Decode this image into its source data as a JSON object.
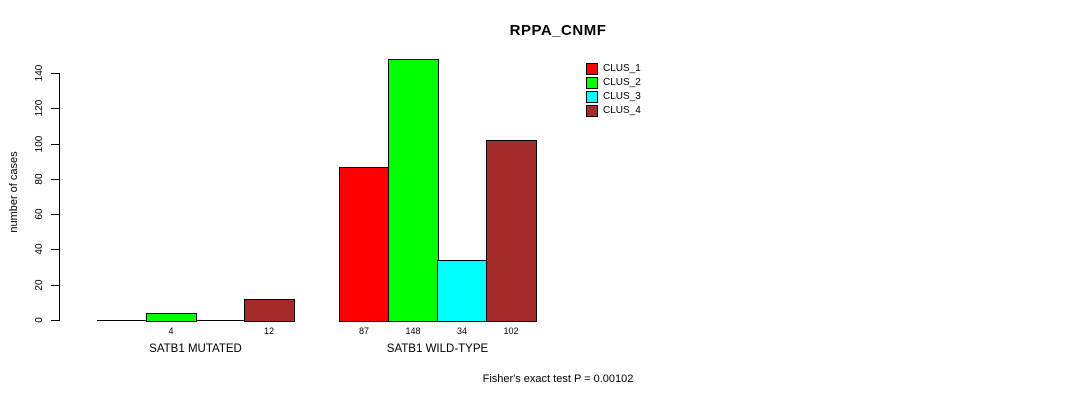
{
  "chart_data": {
    "type": "bar",
    "title": "RPPA_CNMF",
    "ylabel": "number of cases",
    "xlabel": "",
    "categories": [
      "SATB1 MUTATED",
      "SATB1 WILD-TYPE"
    ],
    "series": [
      {
        "name": "CLUS_1",
        "color": "#ff0000",
        "values": [
          0,
          87
        ]
      },
      {
        "name": "CLUS_2",
        "color": "#00ff00",
        "values": [
          4,
          148
        ]
      },
      {
        "name": "CLUS_3",
        "color": "#00ffff",
        "values": [
          0,
          34
        ]
      },
      {
        "name": "CLUS_4",
        "color": "#a52a2a",
        "values": [
          12,
          102
        ]
      }
    ],
    "bar_value_labels": [
      [
        "",
        "4",
        "",
        "12"
      ],
      [
        "87",
        "148",
        "34",
        "102"
      ]
    ],
    "yticks": [
      0,
      20,
      40,
      60,
      80,
      100,
      120,
      140
    ],
    "ylim": [
      0,
      148
    ],
    "grid": false,
    "legend_position": "top-right",
    "annotation": "Fisher's exact test P = 0.00102"
  },
  "colors": {
    "axis": "#000000",
    "background": "#ffffff",
    "clus_1": "#ff0000",
    "clus_2": "#00ff00",
    "clus_3": "#00ffff",
    "clus_4": "#a52a2a"
  }
}
